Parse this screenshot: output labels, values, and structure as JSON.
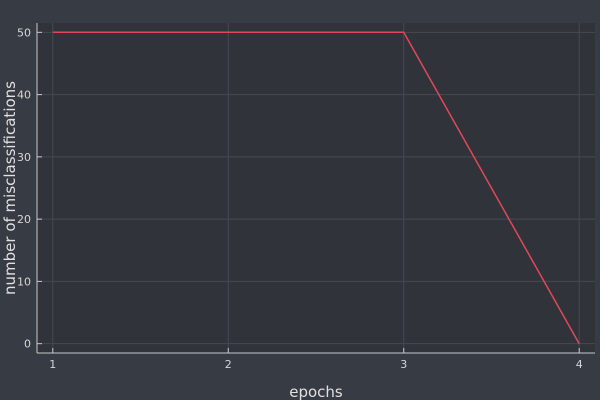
{
  "chart_data": {
    "type": "line",
    "title": "",
    "xlabel": "epochs",
    "ylabel": "number of misclassifications",
    "x": [
      1,
      2,
      3,
      4
    ],
    "series": [
      {
        "values": [
          50,
          50,
          50,
          0
        ],
        "color": "#e0485a"
      }
    ],
    "xlim": [
      0.91,
      4.09
    ],
    "ylim": [
      -1.5,
      51.5
    ],
    "xticks": [
      1,
      2,
      3,
      4
    ],
    "yticks": [
      0,
      10,
      20,
      30,
      40,
      50
    ],
    "grid": true,
    "legend": "none",
    "colors": {
      "background": "#363b44",
      "plot_background": "#30343a",
      "axis": "#c8c8c8",
      "grid": "#454a52"
    }
  }
}
